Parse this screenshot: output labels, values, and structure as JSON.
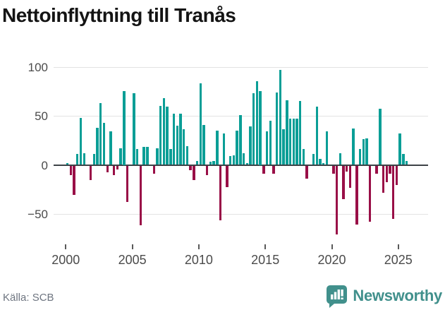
{
  "header": {
    "title": "Nettoinflyttning till Tranås"
  },
  "footer": {
    "source_label": "Källa: SCB",
    "brand": {
      "name": "Newsworthy",
      "icon": "newsworthy-chart-bubble-icon"
    }
  },
  "colors": {
    "positive": "#0a9e96",
    "negative": "#990f47",
    "zero_line": "#3d4247",
    "gridline": "#e3e3e3",
    "title_text": "#141414",
    "axis_text": "#4b4b4b",
    "source_text": "#6e7580",
    "brand_teal": "#41908c"
  },
  "chart_data": {
    "type": "bar",
    "title": "Nettoinflyttning till Tranås",
    "xlabel": "",
    "ylabel": "",
    "frequency": "quarterly",
    "start_year": 2000,
    "start_quarter": 1,
    "ylim": [
      -80,
      110
    ],
    "y_ticks": [
      100,
      50,
      0,
      -50
    ],
    "y_tick_labels": [
      "100",
      "50",
      "0",
      "−50"
    ],
    "x_tick_years": [
      2000,
      2005,
      2010,
      2015,
      2020,
      2025
    ],
    "x_tick_labels": [
      "2000",
      "2005",
      "2010",
      "2015",
      "2020",
      "2025"
    ],
    "grid": "horizontal",
    "legend": "none",
    "series": [
      {
        "name": "Nettoinflyttning",
        "values": [
          2,
          -10,
          -30,
          11,
          48,
          12,
          0,
          -15,
          11,
          38,
          63,
          43,
          -7,
          34,
          -10,
          -4,
          17,
          75,
          -37,
          0,
          73,
          16,
          -61,
          18,
          18,
          0,
          -8,
          17,
          60,
          68,
          59,
          16,
          52,
          40,
          52,
          36,
          19,
          -5,
          -15,
          4,
          83,
          41,
          -10,
          3,
          4,
          35,
          -56,
          32,
          -22,
          9,
          10,
          35,
          51,
          12,
          2,
          39,
          73,
          85,
          75,
          -8,
          34,
          45,
          -8,
          74,
          97,
          36,
          66,
          47,
          47,
          47,
          65,
          16,
          -13,
          0,
          11,
          59,
          6,
          2,
          34,
          0,
          -8,
          -70,
          12,
          -34,
          -6,
          -23,
          37,
          -60,
          16,
          26,
          27,
          -57,
          0,
          -8,
          57,
          -28,
          -17,
          -8,
          -54,
          -20,
          32,
          11,
          4
        ]
      }
    ]
  }
}
